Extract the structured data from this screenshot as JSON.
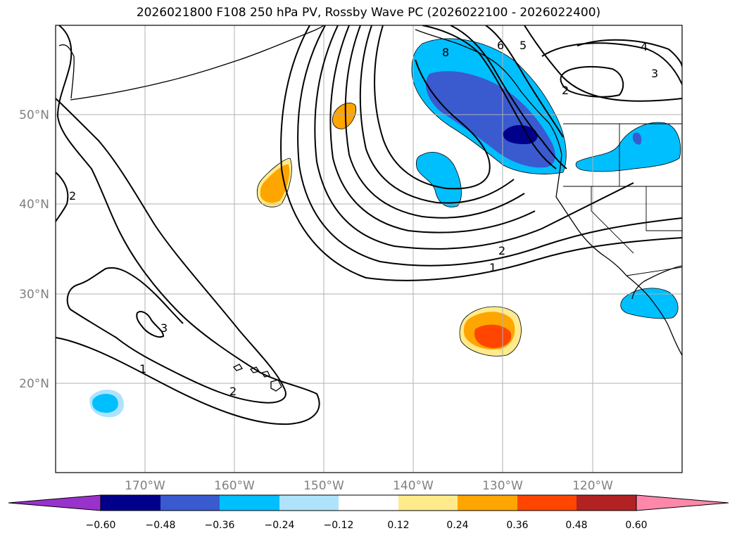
{
  "title": "2026021800 F108 250 hPa PV, Rossby Wave PC (2026022100 - 2026022400)",
  "map": {
    "lat_labels": [
      "50°N",
      "40°N",
      "30°N",
      "20°N"
    ],
    "lon_labels": [
      "170°W",
      "160°W",
      "150°W",
      "140°W",
      "130°W",
      "120°W"
    ],
    "contour_labels": [
      "2",
      "2",
      "1",
      "2",
      "1",
      "3",
      "2",
      "3",
      "4",
      "5",
      "6",
      "8"
    ]
  },
  "colorbar": {
    "ticks": [
      "−0.60",
      "−0.48",
      "−0.36",
      "−0.24",
      "−0.12",
      "0.12",
      "0.24",
      "0.36",
      "0.48",
      "0.60"
    ],
    "colors": [
      "#9932cc",
      "#00008b",
      "#3a5ad0",
      "#00bfff",
      "#aee3fb",
      "#ffffff",
      "#ffeb8c",
      "#ffa500",
      "#ff4500",
      "#b22222",
      "#ff88aa"
    ]
  }
}
